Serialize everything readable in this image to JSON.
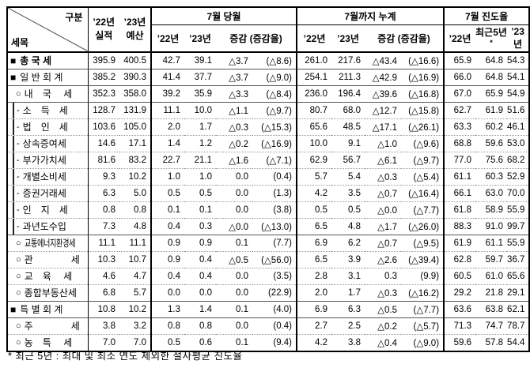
{
  "header": {
    "corner_top": "구분",
    "corner_bottom": "세목",
    "col_actual": {
      "line1": "’22년",
      "line2": "실적"
    },
    "col_budget": {
      "line1": "’23년",
      "line2": "예산"
    },
    "month": {
      "title": "7월 당월",
      "c1": "’22년",
      "c2": "’23년",
      "c3": "증감 (증감율)"
    },
    "cumulative": {
      "title": "7월까지 누계",
      "c1": "’22년",
      "c2": "’23년",
      "c3": "증감 (증감율)"
    },
    "progress": {
      "title": "7월 진도율",
      "c1": "’22년",
      "c2": "최근5년",
      "c2_mark": "*",
      "c3": "’23년"
    }
  },
  "rows": [
    {
      "prefix": "■",
      "label": "총 국 세",
      "level": 0,
      "bold": true,
      "rule": "solid",
      "values": [
        "395.9",
        "400.5",
        "42.7",
        "39.1",
        "△3.7",
        "(△8.6)",
        "261.0",
        "217.6",
        "△43.4",
        "(△16.6)",
        "65.9",
        "64.8",
        "54.3"
      ]
    },
    {
      "prefix": "■",
      "label": "일 반 회 계",
      "level": 0,
      "bold": false,
      "rule": "solid",
      "values": [
        "385.2",
        "390.3",
        "41.4",
        "37.7",
        "△3.7",
        "(△9.0)",
        "254.1",
        "211.3",
        "△42.9",
        "(△16.9)",
        "66.0",
        "64.8",
        "54.1"
      ]
    },
    {
      "prefix": "○",
      "label": "내　국　 세",
      "level": 1,
      "bold": false,
      "rule": "solid",
      "values": [
        "352.3",
        "358.0",
        "39.2",
        "35.9",
        "△3.3",
        "(△8.4)",
        "236.0",
        "196.4",
        "△39.6",
        "(△16.8)",
        "67.0",
        "65.9",
        "54.9"
      ]
    },
    {
      "prefix": "-",
      "label": "소　득　세",
      "level": 2,
      "bold": false,
      "rule": "dotted",
      "values": [
        "128.7",
        "131.9",
        "11.1",
        "10.0",
        "△1.1",
        "(△9.7)",
        "80.7",
        "68.0",
        "△12.7",
        "(△15.8)",
        "62.7",
        "61.9",
        "51.6"
      ]
    },
    {
      "prefix": "-",
      "label": "법　인　세",
      "level": 2,
      "bold": false,
      "rule": "dotted",
      "values": [
        "103.6",
        "105.0",
        "2.0",
        "1.7",
        "△0.3",
        "(△15.3)",
        "65.6",
        "48.5",
        "△17.1",
        "(△26.1)",
        "63.3",
        "60.2",
        "46.1"
      ]
    },
    {
      "prefix": "-",
      "label": "상속증여세",
      "level": 2,
      "bold": false,
      "rule": "dotted",
      "values": [
        "14.6",
        "17.1",
        "1.4",
        "1.2",
        "△0.2",
        "(△16.9)",
        "10.0",
        "9.1",
        "△1.0",
        "(△9.6)",
        "68.8",
        "59.6",
        "53.0"
      ]
    },
    {
      "prefix": "-",
      "label": "부가가치세",
      "level": 2,
      "bold": false,
      "rule": "dotted",
      "values": [
        "81.6",
        "83.2",
        "22.7",
        "21.1",
        "△1.6",
        "(△7.1)",
        "62.9",
        "56.7",
        "△6.1",
        "(△9.7)",
        "77.0",
        "75.6",
        "68.2"
      ]
    },
    {
      "prefix": "-",
      "label": "개별소비세",
      "level": 2,
      "bold": false,
      "rule": "dotted",
      "values": [
        "9.3",
        "10.2",
        "1.0",
        "1.0",
        "0.0",
        "(0.4)",
        "5.7",
        "5.4",
        "△0.3",
        "(△5.4)",
        "61.1",
        "60.3",
        "52.9"
      ]
    },
    {
      "prefix": "-",
      "label": "증권거래세",
      "level": 2,
      "bold": false,
      "rule": "dotted",
      "values": [
        "6.3",
        "5.0",
        "0.5",
        "0.5",
        "0.0",
        "(1.3)",
        "4.2",
        "3.5",
        "△0.7",
        "(△16.4)",
        "66.1",
        "63.0",
        "70.0"
      ]
    },
    {
      "prefix": "-",
      "label": "인　지　세",
      "level": 2,
      "bold": false,
      "rule": "dotted",
      "values": [
        "0.8",
        "0.8",
        "0.1",
        "0.1",
        "0.0",
        "(3.8)",
        "0.5",
        "0.5",
        "△0.0",
        "(△7.7)",
        "61.8",
        "58.9",
        "55.9"
      ]
    },
    {
      "prefix": "-",
      "label": "과년도수입",
      "level": 2,
      "bold": false,
      "rule": "solid",
      "values": [
        "7.3",
        "4.8",
        "0.4",
        "0.3",
        "△0.0",
        "(△13.0)",
        "6.5",
        "4.8",
        "△1.7",
        "(△26.0)",
        "88.3",
        "91.0",
        "99.7"
      ]
    },
    {
      "prefix": "○",
      "label": "교통에너지환경세",
      "level": 1,
      "bold": false,
      "rule": "dotted",
      "values": [
        "11.1",
        "11.1",
        "0.9",
        "0.9",
        "0.1",
        "(7.7)",
        "6.9",
        "6.2",
        "△0.7",
        "(△9.5)",
        "61.9",
        "61.1",
        "55.9"
      ]
    },
    {
      "prefix": "○",
      "label": "관　　　　세",
      "level": 1,
      "bold": false,
      "rule": "dotted",
      "values": [
        "10.3",
        "10.7",
        "0.9",
        "0.4",
        "△0.5",
        "(△56.0)",
        "6.5",
        "3.9",
        "△2.6",
        "(△39.4)",
        "62.8",
        "59.7",
        "36.7"
      ]
    },
    {
      "prefix": "○",
      "label": "교　육　 세",
      "level": 1,
      "bold": false,
      "rule": "dotted",
      "values": [
        "4.6",
        "4.7",
        "0.4",
        "0.4",
        "0.0",
        "(3.5)",
        "2.8",
        "3.1",
        "0.3",
        "(9.9)",
        "60.5",
        "61.0",
        "65.6"
      ]
    },
    {
      "prefix": "○",
      "label": "종합부동산세",
      "level": 1,
      "bold": false,
      "rule": "solid",
      "values": [
        "6.8",
        "5.7",
        "0.0",
        "0.0",
        "0.0",
        "(22.9)",
        "2.0",
        "1.7",
        "△0.3",
        "(△16.2)",
        "29.2",
        "21.8",
        "29.1"
      ]
    },
    {
      "prefix": "■",
      "label": "특 별 회 계",
      "level": 0,
      "bold": false,
      "rule": "solid",
      "values": [
        "10.8",
        "10.2",
        "1.3",
        "1.4",
        "0.1",
        "(4.0)",
        "6.9",
        "6.3",
        "△0.5",
        "(△7.7)",
        "63.6",
        "63.8",
        "62.1"
      ]
    },
    {
      "prefix": "○",
      "label": "주　　　　세",
      "level": 1,
      "bold": false,
      "rule": "dotted",
      "values": [
        "3.8",
        "3.2",
        "0.8",
        "0.8",
        "0.0",
        "(0.4)",
        "2.7",
        "2.5",
        "△0.2",
        "(△5.7)",
        "71.3",
        "74.7",
        "78.7"
      ]
    },
    {
      "prefix": "○",
      "label": "농　특　 세",
      "level": 1,
      "bold": false,
      "rule": "none",
      "values": [
        "7.0",
        "7.0",
        "0.5",
        "0.6",
        "0.1",
        "(9.4)",
        "4.2",
        "3.8",
        "△0.4",
        "(△9.0)",
        "59.6",
        "57.8",
        "54.4"
      ]
    }
  ],
  "footnote": "* 최근 5년 : 최대 및 최소 연도 제외한 절사평균 진도율"
}
